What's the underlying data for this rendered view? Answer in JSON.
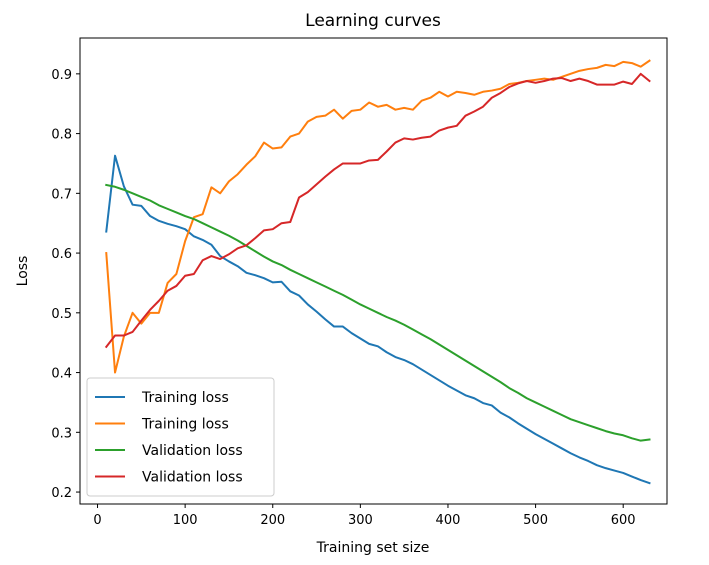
{
  "chart_data": {
    "type": "line",
    "title": "Learning curves",
    "xlabel": "Training set size",
    "ylabel": "Loss",
    "xlim": [
      -20,
      650
    ],
    "ylim": [
      0.18,
      0.96
    ],
    "xticks": [
      0,
      100,
      200,
      300,
      400,
      500,
      600
    ],
    "yticks": [
      0.2,
      0.3,
      0.4,
      0.5,
      0.6,
      0.7,
      0.8,
      0.9
    ],
    "legend_position": "lower-left",
    "grid": false,
    "series": [
      {
        "name": "Training loss",
        "color": "#1f77b4",
        "points": [
          [
            10,
            0.636
          ],
          [
            20,
            0.763
          ],
          [
            30,
            0.712
          ],
          [
            40,
            0.681
          ],
          [
            50,
            0.679
          ],
          [
            60,
            0.662
          ],
          [
            70,
            0.654
          ],
          [
            80,
            0.649
          ],
          [
            90,
            0.645
          ],
          [
            100,
            0.64
          ],
          [
            110,
            0.628
          ],
          [
            120,
            0.622
          ],
          [
            130,
            0.614
          ],
          [
            140,
            0.595
          ],
          [
            150,
            0.586
          ],
          [
            160,
            0.578
          ],
          [
            170,
            0.567
          ],
          [
            180,
            0.563
          ],
          [
            190,
            0.558
          ],
          [
            200,
            0.551
          ],
          [
            210,
            0.552
          ],
          [
            220,
            0.536
          ],
          [
            230,
            0.529
          ],
          [
            240,
            0.514
          ],
          [
            250,
            0.502
          ],
          [
            260,
            0.489
          ],
          [
            270,
            0.477
          ],
          [
            280,
            0.477
          ],
          [
            290,
            0.466
          ],
          [
            300,
            0.457
          ],
          [
            310,
            0.448
          ],
          [
            320,
            0.444
          ],
          [
            330,
            0.434
          ],
          [
            340,
            0.426
          ],
          [
            350,
            0.421
          ],
          [
            360,
            0.414
          ],
          [
            370,
            0.405
          ],
          [
            380,
            0.396
          ],
          [
            390,
            0.387
          ],
          [
            400,
            0.378
          ],
          [
            410,
            0.37
          ],
          [
            420,
            0.362
          ],
          [
            430,
            0.357
          ],
          [
            440,
            0.349
          ],
          [
            450,
            0.345
          ],
          [
            460,
            0.333
          ],
          [
            470,
            0.325
          ],
          [
            480,
            0.315
          ],
          [
            490,
            0.306
          ],
          [
            500,
            0.297
          ],
          [
            510,
            0.289
          ],
          [
            520,
            0.281
          ],
          [
            530,
            0.273
          ],
          [
            540,
            0.265
          ],
          [
            550,
            0.258
          ],
          [
            560,
            0.252
          ],
          [
            570,
            0.245
          ],
          [
            580,
            0.24
          ],
          [
            590,
            0.236
          ],
          [
            600,
            0.232
          ],
          [
            610,
            0.226
          ],
          [
            620,
            0.22
          ],
          [
            630,
            0.215
          ]
        ]
      },
      {
        "name": "Training loss",
        "color": "#ff7f0e",
        "points": [
          [
            10,
            0.6
          ],
          [
            20,
            0.4
          ],
          [
            30,
            0.46
          ],
          [
            40,
            0.5
          ],
          [
            50,
            0.482
          ],
          [
            60,
            0.5
          ],
          [
            70,
            0.5
          ],
          [
            80,
            0.55
          ],
          [
            90,
            0.565
          ],
          [
            100,
            0.62
          ],
          [
            110,
            0.66
          ],
          [
            120,
            0.665
          ],
          [
            130,
            0.71
          ],
          [
            140,
            0.7
          ],
          [
            150,
            0.72
          ],
          [
            160,
            0.732
          ],
          [
            170,
            0.748
          ],
          [
            180,
            0.762
          ],
          [
            190,
            0.785
          ],
          [
            200,
            0.775
          ],
          [
            210,
            0.777
          ],
          [
            220,
            0.795
          ],
          [
            230,
            0.8
          ],
          [
            240,
            0.82
          ],
          [
            250,
            0.828
          ],
          [
            260,
            0.83
          ],
          [
            270,
            0.84
          ],
          [
            280,
            0.825
          ],
          [
            290,
            0.838
          ],
          [
            300,
            0.84
          ],
          [
            310,
            0.852
          ],
          [
            320,
            0.845
          ],
          [
            330,
            0.848
          ],
          [
            340,
            0.84
          ],
          [
            350,
            0.843
          ],
          [
            360,
            0.84
          ],
          [
            370,
            0.855
          ],
          [
            380,
            0.86
          ],
          [
            390,
            0.87
          ],
          [
            400,
            0.862
          ],
          [
            410,
            0.87
          ],
          [
            420,
            0.868
          ],
          [
            430,
            0.865
          ],
          [
            440,
            0.87
          ],
          [
            450,
            0.872
          ],
          [
            460,
            0.875
          ],
          [
            470,
            0.883
          ],
          [
            480,
            0.885
          ],
          [
            490,
            0.888
          ],
          [
            500,
            0.89
          ],
          [
            510,
            0.892
          ],
          [
            520,
            0.89
          ],
          [
            530,
            0.895
          ],
          [
            540,
            0.9
          ],
          [
            550,
            0.905
          ],
          [
            560,
            0.908
          ],
          [
            570,
            0.91
          ],
          [
            580,
            0.915
          ],
          [
            590,
            0.913
          ],
          [
            600,
            0.92
          ],
          [
            610,
            0.918
          ],
          [
            620,
            0.912
          ],
          [
            630,
            0.922
          ]
        ]
      },
      {
        "name": "Validation loss",
        "color": "#2ca02c",
        "points": [
          [
            10,
            0.714
          ],
          [
            20,
            0.711
          ],
          [
            30,
            0.706
          ],
          [
            40,
            0.7
          ],
          [
            50,
            0.694
          ],
          [
            60,
            0.688
          ],
          [
            70,
            0.68
          ],
          [
            80,
            0.674
          ],
          [
            90,
            0.668
          ],
          [
            100,
            0.662
          ],
          [
            110,
            0.657
          ],
          [
            120,
            0.65
          ],
          [
            130,
            0.643
          ],
          [
            140,
            0.636
          ],
          [
            150,
            0.629
          ],
          [
            160,
            0.621
          ],
          [
            170,
            0.612
          ],
          [
            180,
            0.603
          ],
          [
            190,
            0.594
          ],
          [
            200,
            0.586
          ],
          [
            210,
            0.58
          ],
          [
            220,
            0.572
          ],
          [
            230,
            0.565
          ],
          [
            240,
            0.558
          ],
          [
            250,
            0.551
          ],
          [
            260,
            0.544
          ],
          [
            270,
            0.537
          ],
          [
            280,
            0.53
          ],
          [
            290,
            0.522
          ],
          [
            300,
            0.514
          ],
          [
            310,
            0.507
          ],
          [
            320,
            0.5
          ],
          [
            330,
            0.493
          ],
          [
            340,
            0.487
          ],
          [
            350,
            0.48
          ],
          [
            360,
            0.472
          ],
          [
            370,
            0.464
          ],
          [
            380,
            0.456
          ],
          [
            390,
            0.447
          ],
          [
            400,
            0.438
          ],
          [
            410,
            0.429
          ],
          [
            420,
            0.42
          ],
          [
            430,
            0.411
          ],
          [
            440,
            0.402
          ],
          [
            450,
            0.393
          ],
          [
            460,
            0.384
          ],
          [
            470,
            0.374
          ],
          [
            480,
            0.366
          ],
          [
            490,
            0.357
          ],
          [
            500,
            0.35
          ],
          [
            510,
            0.343
          ],
          [
            520,
            0.336
          ],
          [
            530,
            0.329
          ],
          [
            540,
            0.322
          ],
          [
            550,
            0.317
          ],
          [
            560,
            0.312
          ],
          [
            570,
            0.307
          ],
          [
            580,
            0.302
          ],
          [
            590,
            0.298
          ],
          [
            600,
            0.295
          ],
          [
            610,
            0.29
          ],
          [
            620,
            0.286
          ],
          [
            630,
            0.288
          ]
        ]
      },
      {
        "name": "Validation loss",
        "color": "#d62728",
        "points": [
          [
            10,
            0.443
          ],
          [
            20,
            0.462
          ],
          [
            30,
            0.462
          ],
          [
            40,
            0.468
          ],
          [
            50,
            0.487
          ],
          [
            60,
            0.505
          ],
          [
            70,
            0.52
          ],
          [
            80,
            0.537
          ],
          [
            90,
            0.545
          ],
          [
            100,
            0.562
          ],
          [
            110,
            0.565
          ],
          [
            120,
            0.588
          ],
          [
            130,
            0.595
          ],
          [
            140,
            0.59
          ],
          [
            150,
            0.598
          ],
          [
            160,
            0.608
          ],
          [
            170,
            0.613
          ],
          [
            180,
            0.625
          ],
          [
            190,
            0.638
          ],
          [
            200,
            0.64
          ],
          [
            210,
            0.65
          ],
          [
            220,
            0.652
          ],
          [
            230,
            0.693
          ],
          [
            240,
            0.702
          ],
          [
            250,
            0.715
          ],
          [
            260,
            0.728
          ],
          [
            270,
            0.74
          ],
          [
            280,
            0.75
          ],
          [
            290,
            0.75
          ],
          [
            300,
            0.75
          ],
          [
            310,
            0.755
          ],
          [
            320,
            0.756
          ],
          [
            330,
            0.77
          ],
          [
            340,
            0.785
          ],
          [
            350,
            0.792
          ],
          [
            360,
            0.79
          ],
          [
            370,
            0.793
          ],
          [
            380,
            0.795
          ],
          [
            390,
            0.805
          ],
          [
            400,
            0.81
          ],
          [
            410,
            0.813
          ],
          [
            420,
            0.83
          ],
          [
            430,
            0.837
          ],
          [
            440,
            0.845
          ],
          [
            450,
            0.86
          ],
          [
            460,
            0.868
          ],
          [
            470,
            0.878
          ],
          [
            480,
            0.884
          ],
          [
            490,
            0.888
          ],
          [
            500,
            0.885
          ],
          [
            510,
            0.888
          ],
          [
            520,
            0.892
          ],
          [
            530,
            0.893
          ],
          [
            540,
            0.888
          ],
          [
            550,
            0.892
          ],
          [
            560,
            0.888
          ],
          [
            570,
            0.882
          ],
          [
            580,
            0.882
          ],
          [
            590,
            0.882
          ],
          [
            600,
            0.887
          ],
          [
            610,
            0.883
          ],
          [
            620,
            0.9
          ],
          [
            630,
            0.888
          ]
        ]
      }
    ]
  }
}
